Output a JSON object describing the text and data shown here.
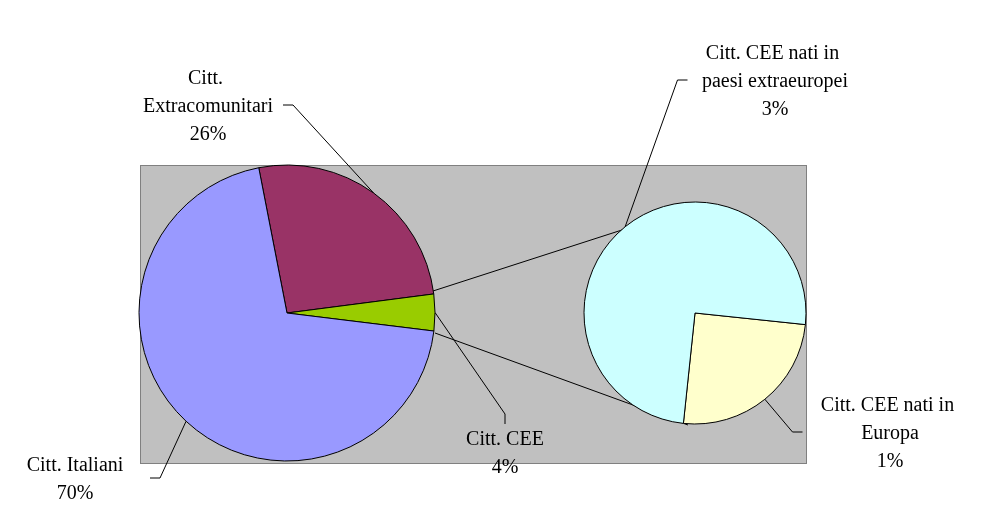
{
  "chart_data": [
    {
      "type": "pie",
      "categories": [
        "Citt. Extracomunitari",
        "Citt. CEE",
        "Citt. Italiani"
      ],
      "values": [
        26,
        4,
        70
      ],
      "colors": [
        "#993366",
        "#99cc00",
        "#9999ff"
      ],
      "value_labels": [
        "26%",
        "4%",
        "70%"
      ]
    },
    {
      "type": "pie",
      "categories": [
        "Citt. CEE nati in Europa",
        "Citt. CEE nati in paesi extraeuropei"
      ],
      "values": [
        1,
        3
      ],
      "colors": [
        "#ffffcc",
        "#ccffff"
      ],
      "value_labels": [
        "1%",
        "3%"
      ]
    }
  ]
}
